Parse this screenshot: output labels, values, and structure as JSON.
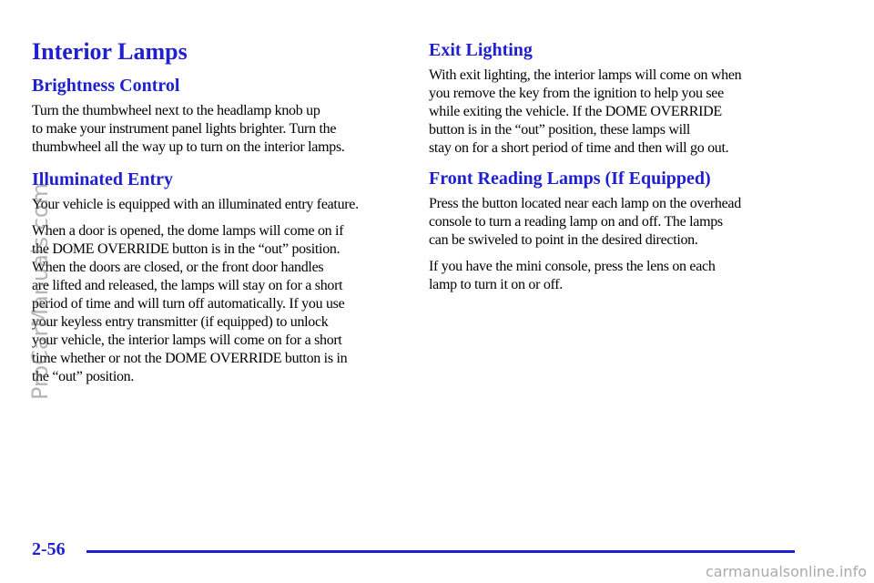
{
  "page": {
    "title": "Interior Lamps",
    "left": [
      {
        "heading": "Brightness Control",
        "paragraphs": [
          [
            "Turn the thumbwheel next to the headlamp knob up",
            "to make your instrument panel lights brighter. Turn the",
            "thumbwheel all the way up to turn on the interior lamps."
          ]
        ]
      },
      {
        "heading": "Illuminated Entry",
        "paragraphs": [
          [
            "Your vehicle is equipped with an illuminated entry feature."
          ],
          [
            "When a door is opened, the dome lamps will come on if",
            "the DOME OVERRIDE button is in the “out” position.",
            "When the doors are closed, or the front door handles",
            "are lifted and released, the lamps will stay on for a short",
            "period of time and will turn off automatically. If you use",
            "your keyless entry transmitter (if equipped) to unlock",
            "your vehicle, the interior lamps will come on for a short",
            "time whether or not the DOME OVERRIDE button is in",
            "the “out” position."
          ]
        ]
      }
    ],
    "right": [
      {
        "heading": "Exit Lighting",
        "paragraphs": [
          [
            "With exit lighting, the interior lamps will come on when",
            "you remove the key from the ignition to help you see",
            "while exiting the vehicle. If the DOME OVERRIDE",
            "button is in the “out” position, these lamps will",
            "stay on for a short period of time and then will go out."
          ]
        ]
      },
      {
        "heading": "Front Reading Lamps (If Equipped)",
        "paragraphs": [
          [
            "Press the button located near each lamp on the overhead",
            "console to turn a reading lamp on and off. The lamps",
            "can be swiveled to point in the desired direction."
          ],
          [
            "If you have the mini console, press the lens on each",
            "lamp to turn it on or off."
          ]
        ]
      }
    ]
  },
  "footer": {
    "page_number": "2-56"
  },
  "watermarks": {
    "side": "ProCarManuals.com",
    "bottom": "carmanualsonline.info"
  }
}
